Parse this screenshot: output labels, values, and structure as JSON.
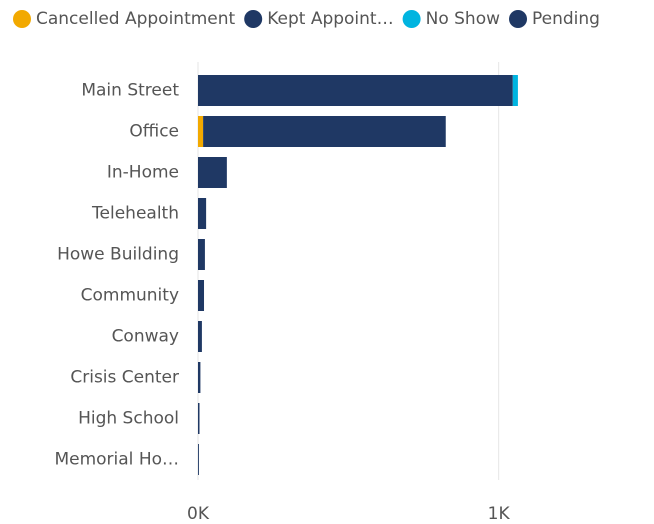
{
  "chart_data": {
    "type": "stacked-bar-horizontal",
    "categories": [
      "Main Street",
      "Office",
      "In-Home",
      "Telehealth",
      "Howe Building",
      "Community",
      "Conway",
      "Crisis Center",
      "High School",
      "Memorial Ho…"
    ],
    "series": [
      {
        "name": "Cancelled Appointment",
        "color": "#f2a900",
        "values": [
          0,
          17,
          0,
          0,
          0,
          0,
          0,
          0,
          0,
          0
        ]
      },
      {
        "name": "Kept Appoint…",
        "color": "#1f3864",
        "values": [
          1047,
          807,
          96,
          27,
          23,
          20,
          13,
          8,
          5,
          3
        ]
      },
      {
        "name": "No Show",
        "color": "#00b4e0",
        "values": [
          17,
          0,
          0,
          0,
          0,
          0,
          0,
          0,
          0,
          0
        ]
      },
      {
        "name": "Pending",
        "color": "#1f3864",
        "values": [
          0,
          0,
          0,
          0,
          0,
          0,
          0,
          0,
          0,
          0
        ]
      }
    ],
    "xlim": [
      0,
      1500
    ],
    "xticks": [
      {
        "value": 0,
        "label": "0K"
      },
      {
        "value": 1000,
        "label": "1K"
      }
    ],
    "grid": true,
    "legend": "top"
  }
}
